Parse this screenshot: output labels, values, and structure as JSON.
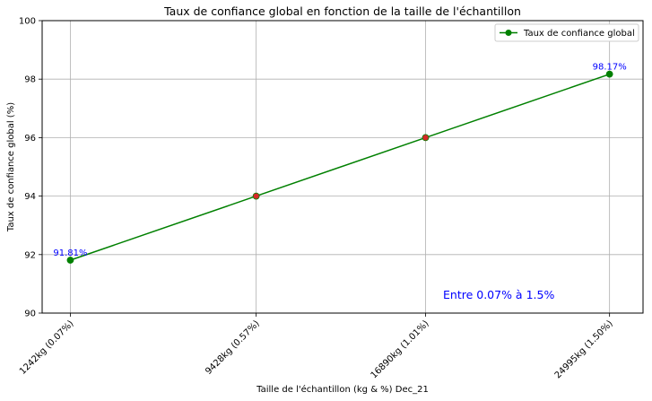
{
  "chart_data": {
    "type": "line",
    "title": "Taux de confiance global en fonction de la taille de l'échantillon",
    "xlabel": "Taille de l'échantillon (kg & %) Dec_21",
    "ylabel": "Taux de confiance global (%)",
    "categories": [
      "1242kg (0.07%)",
      "9428kg (0.57%)",
      "16890kg (1.01%)",
      "24995kg (1.50%)"
    ],
    "x": [
      1242,
      9428,
      16890,
      24995
    ],
    "series": [
      {
        "name": "Taux de confiance global",
        "values": [
          91.81,
          94.0,
          96.0,
          98.17
        ],
        "color": "#008000",
        "marker_colors": [
          "#008000",
          "#d62728",
          "#d62728",
          "#008000"
        ]
      }
    ],
    "data_labels": [
      {
        "index": 0,
        "text": "91.81%"
      },
      {
        "index": 3,
        "text": "98.17%"
      }
    ],
    "data_label_color": "#0000ff",
    "ylim": [
      90,
      100
    ],
    "yticks": [
      90,
      92,
      94,
      96,
      98,
      100
    ],
    "grid": true,
    "legend_position": "top-right",
    "annotation": {
      "text": "Entre 0.07% à 1.5%",
      "color": "#0000ff"
    }
  }
}
